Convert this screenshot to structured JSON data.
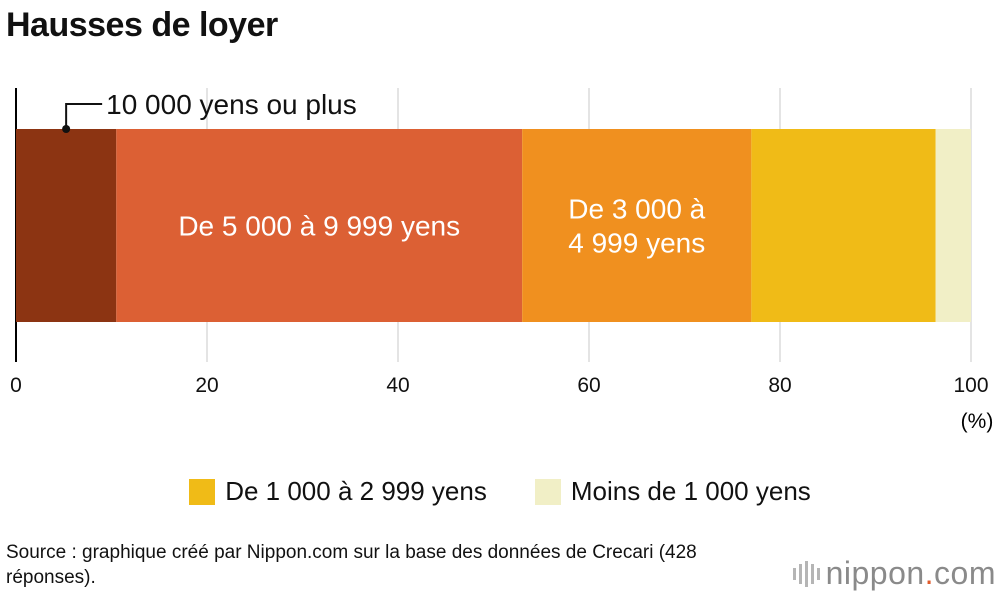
{
  "title": "Hausses de loyer",
  "chart_data": {
    "type": "bar",
    "orientation": "horizontal-stacked",
    "x_unit": "(%)",
    "xlim": [
      0,
      100
    ],
    "x_ticks": [
      "0",
      "20",
      "40",
      "60",
      "80",
      "100"
    ],
    "grid": true,
    "segments": [
      {
        "label": "10 000 yens ou plus",
        "value": 10.5,
        "color": "#8c3412",
        "label_style": "callout"
      },
      {
        "label": "De 5 000 à 9 999 yens",
        "value": 42.5,
        "color": "#dc6034",
        "label_style": "inside"
      },
      {
        "label": "De 3 000 à\n4 999 yens",
        "value": 24.0,
        "color": "#f0901f",
        "label_style": "inside"
      },
      {
        "label": "De 1 000 à 2 999 yens",
        "value": 19.3,
        "color": "#f0bb17",
        "label_style": "legend"
      },
      {
        "label": "Moins de 1 000 yens",
        "value": 3.7,
        "color": "#f1efc6",
        "label_style": "legend"
      }
    ],
    "legend_position": "bottom"
  },
  "source": "Source : graphique créé par Nippon.com sur la base des données de Crecari (428 réponses).",
  "logo": {
    "name": "nippon",
    "suffix": ".com"
  }
}
